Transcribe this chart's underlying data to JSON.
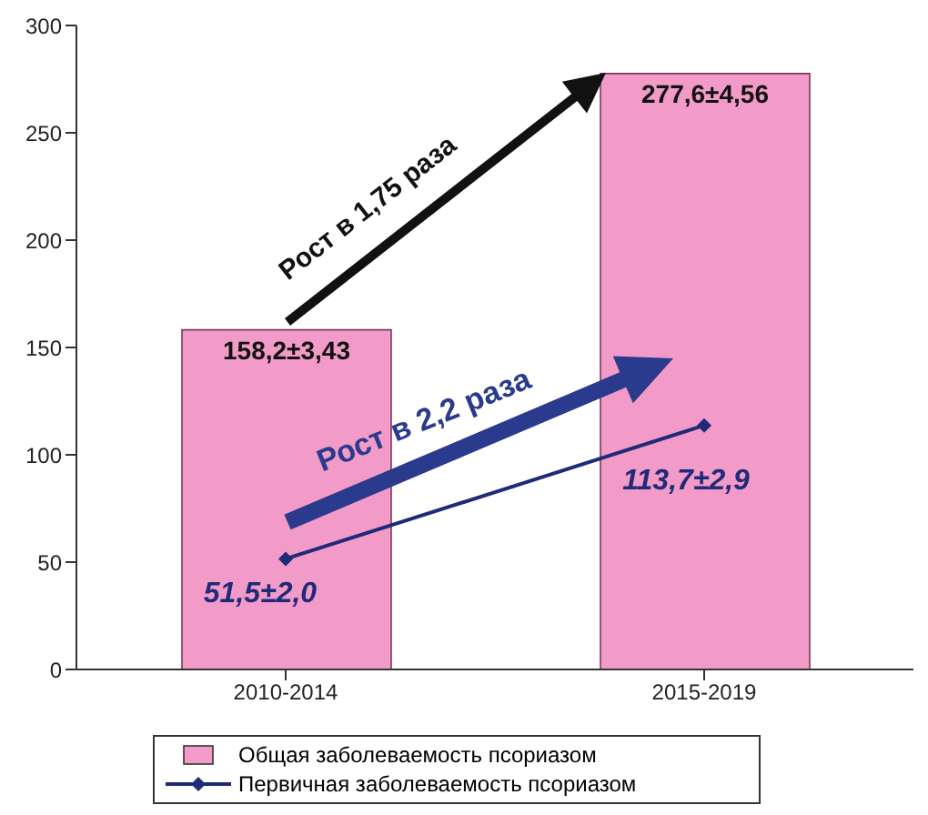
{
  "chart_data": {
    "type": "bar",
    "categories": [
      "2010-2014",
      "2015-2019"
    ],
    "series": [
      {
        "name": "Общая заболеваемость псориазом",
        "color": "#f29ac8",
        "values": [
          158.2,
          277.6
        ],
        "value_labels": [
          "158,2±3,43",
          "277,6±4,56"
        ]
      },
      {
        "name": "Первичная заболеваемость псориазом",
        "type": "line",
        "color": "#1f2a78",
        "values": [
          51.5,
          113.7
        ],
        "value_labels": [
          "51,5±2,0",
          "113,7±2,9"
        ],
        "marker": "diamond"
      }
    ],
    "ylim": [
      0,
      300
    ],
    "yticks": [
      0,
      50,
      100,
      150,
      200,
      250,
      300
    ],
    "grid": false,
    "legend": "bottom",
    "annotations": [
      "Рост в 1,75 раза",
      "Рост в 2,2 раза"
    ]
  }
}
